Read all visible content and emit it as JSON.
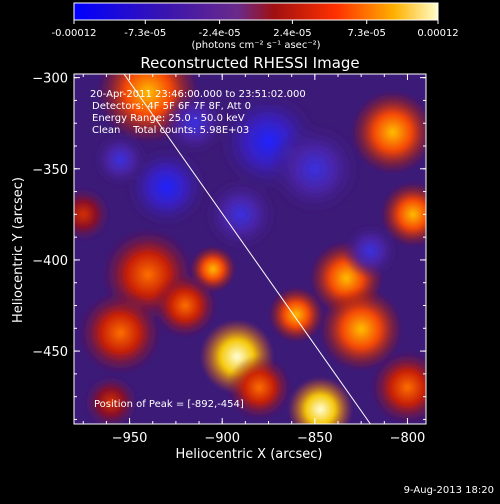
{
  "colorbar": {
    "tick_labels": [
      "-0.00012",
      "-7.3e-05",
      "-2.4e-05",
      "2.4e-05",
      "7.3e-05",
      "0.00012"
    ],
    "tick_values": [
      -0.00012,
      -7.3e-05,
      -2.4e-05,
      2.4e-05,
      7.3e-05,
      0.00012
    ],
    "units_label": "(photons cm⁻² s⁻¹ asec⁻²)",
    "range": [
      -0.00012,
      0.00012
    ]
  },
  "chart_data": {
    "type": "heatmap",
    "title": "Reconstructed RHESSI Image",
    "xlabel": "Heliocentric X (arcsec)",
    "ylabel": "Heliocentric Y (arcsec)",
    "xlim": [
      -980,
      -790
    ],
    "ylim": [
      -490,
      -298
    ],
    "x_ticks": [
      -950,
      -900,
      -850,
      -800
    ],
    "y_ticks": [
      -300,
      -350,
      -400,
      -450
    ],
    "x_tick_labels": [
      "−950",
      "−900",
      "−850",
      "−800"
    ],
    "y_tick_labels": [
      "−300",
      "−350",
      "−400",
      "−450"
    ],
    "limb_line": {
      "from": [
        -953,
        -298
      ],
      "to": [
        -820,
        -490
      ]
    },
    "peak": {
      "x": -892,
      "y": -454
    },
    "blobs": [
      {
        "x": -892,
        "y": -453,
        "r": 16,
        "v": 1.0
      },
      {
        "x": -847,
        "y": -482,
        "r": 14,
        "v": 0.95
      },
      {
        "x": -940,
        "y": -308,
        "r": 22,
        "v": 0.8
      },
      {
        "x": -808,
        "y": -330,
        "r": 18,
        "v": 0.75
      },
      {
        "x": -797,
        "y": -375,
        "r": 14,
        "v": 0.7
      },
      {
        "x": -905,
        "y": -405,
        "r": 10,
        "v": 0.75
      },
      {
        "x": -833,
        "y": -410,
        "r": 16,
        "v": 0.85
      },
      {
        "x": -825,
        "y": -438,
        "r": 18,
        "v": 0.75
      },
      {
        "x": -860,
        "y": -430,
        "r": 12,
        "v": 0.7
      },
      {
        "x": -940,
        "y": -408,
        "r": 20,
        "v": 0.6
      },
      {
        "x": -955,
        "y": -440,
        "r": 18,
        "v": 0.5
      },
      {
        "x": -920,
        "y": -425,
        "r": 14,
        "v": 0.55
      },
      {
        "x": -800,
        "y": -470,
        "r": 16,
        "v": 0.55
      },
      {
        "x": -880,
        "y": -470,
        "r": 14,
        "v": 0.6
      },
      {
        "x": -960,
        "y": -478,
        "r": 12,
        "v": 0.4
      },
      {
        "x": -975,
        "y": -375,
        "r": 12,
        "v": 0.35
      },
      {
        "x": -930,
        "y": -360,
        "r": 18,
        "v": -0.6
      },
      {
        "x": -875,
        "y": -335,
        "r": 22,
        "v": -0.55
      },
      {
        "x": -890,
        "y": -375,
        "r": 16,
        "v": -0.5
      },
      {
        "x": -820,
        "y": -395,
        "r": 12,
        "v": -0.45
      },
      {
        "x": -850,
        "y": -350,
        "r": 20,
        "v": -0.4
      },
      {
        "x": -915,
        "y": -325,
        "r": 14,
        "v": -0.45
      },
      {
        "x": -955,
        "y": -345,
        "r": 12,
        "v": -0.4
      }
    ]
  },
  "annotations": {
    "time_range": "20-Apr-2011 23:46:00.000 to 23:51:02.000",
    "detectors": "Detectors: 4F 5F 6F 7F 8F, Att 0",
    "energy_range": "Energy Range: 25.0 - 50.0 keV",
    "method": "Clean    Total counts: 5.98E+03",
    "peak_position": "Position of Peak = [-892,-454]"
  },
  "footer": {
    "date": "9-Aug-2013 18:20"
  }
}
